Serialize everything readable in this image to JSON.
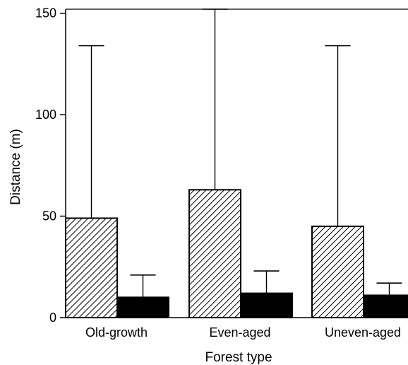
{
  "chart_data": {
    "type": "bar",
    "title": "",
    "xlabel": "Forest type",
    "ylabel": "Distance (m)",
    "categories": [
      "Old-growth",
      "Even-aged",
      "Uneven-aged"
    ],
    "ylim": [
      0,
      152
    ],
    "yticks": [
      0,
      50,
      100,
      150
    ],
    "series": [
      {
        "fill": "hatched",
        "color": "#000000",
        "values": [
          49,
          63,
          45
        ],
        "error_upper": [
          134,
          152,
          134
        ]
      },
      {
        "fill": "solid",
        "color": "#000000",
        "values": [
          10,
          12,
          11
        ],
        "error_upper": [
          21,
          23,
          17
        ]
      }
    ],
    "grid": false,
    "legend": "none"
  }
}
